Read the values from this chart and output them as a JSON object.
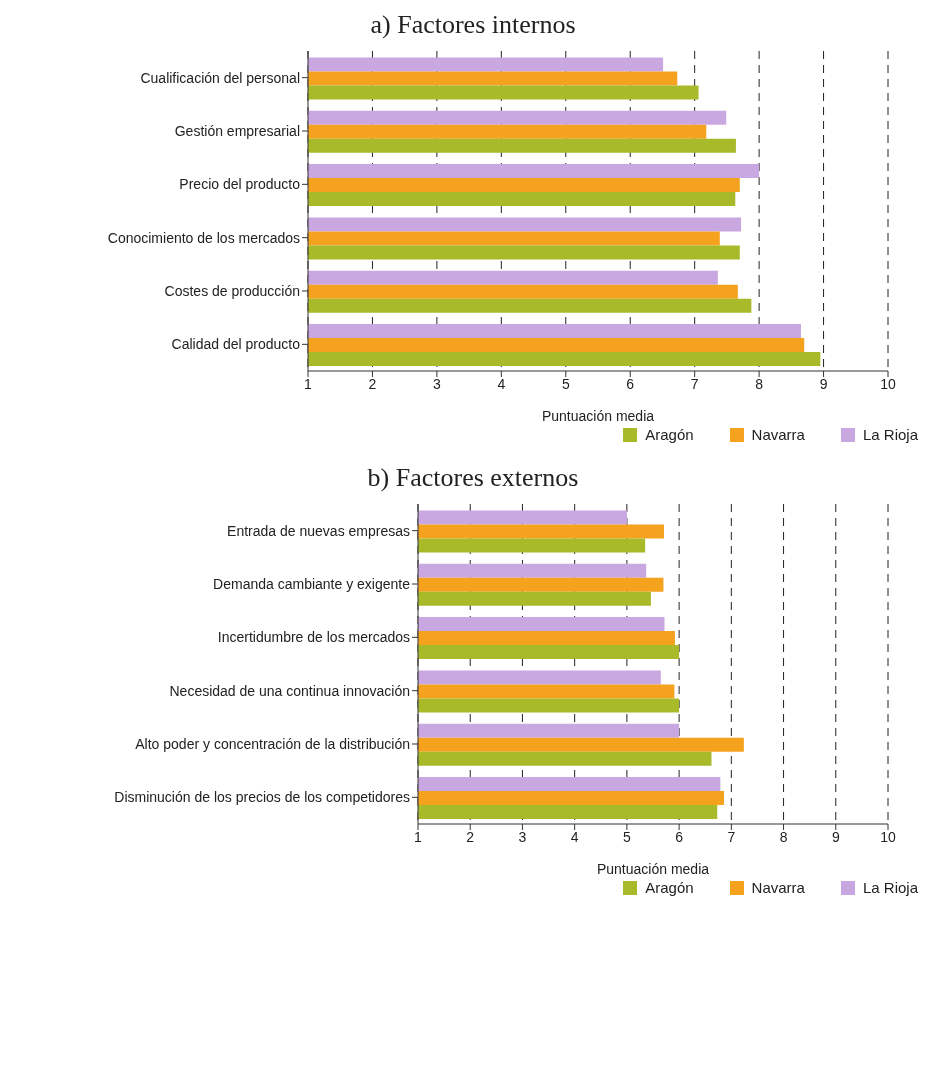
{
  "chart_data": [
    {
      "type": "bar",
      "orientation": "horizontal",
      "title": "a) Factores internos",
      "xlabel": "Puntuación media",
      "categories": [
        "Cualificación del personal",
        "Gestión empresarial",
        "Precio del producto",
        "Conocimiento de los mercados",
        "Costes de producción",
        "Calidad del producto"
      ],
      "series": [
        {
          "name": "Aragón",
          "color": "#a8b92a",
          "values": [
            7.06,
            7.64,
            7.63,
            7.7,
            7.88,
            8.95
          ]
        },
        {
          "name": "Navarra",
          "color": "#f5a21f",
          "values": [
            6.73,
            7.18,
            7.7,
            7.39,
            7.67,
            8.7
          ]
        },
        {
          "name": "La Rioja",
          "color": "#c9a8e2",
          "values": [
            6.51,
            7.49,
            8.0,
            7.72,
            7.36,
            8.65
          ]
        }
      ],
      "xlim": [
        1,
        10
      ],
      "xticks": [
        1,
        2,
        3,
        4,
        5,
        6,
        7,
        8,
        9,
        10
      ],
      "grid": "x",
      "legend": "bottom right"
    },
    {
      "type": "bar",
      "orientation": "horizontal",
      "title": "b) Factores externos",
      "xlabel": "Puntuación media",
      "categories": [
        "Entrada de nuevas empresas",
        "Demanda cambiante y exigente",
        "Incertidumbre de los mercados",
        "Necesidad de una continua innovación",
        "Alto poder y concentración de la distribución",
        "Disminución de los precios de los competidores"
      ],
      "series": [
        {
          "name": "Aragón",
          "color": "#a8b92a",
          "values": [
            5.35,
            5.46,
            6.0,
            6.0,
            6.62,
            6.73
          ]
        },
        {
          "name": "Navarra",
          "color": "#f5a21f",
          "values": [
            5.71,
            5.7,
            5.92,
            5.91,
            7.24,
            6.86
          ]
        },
        {
          "name": "La Rioja",
          "color": "#c9a8e2",
          "values": [
            5.0,
            5.37,
            5.72,
            5.65,
            6.0,
            6.79
          ]
        }
      ],
      "xlim": [
        1,
        10
      ],
      "xticks": [
        1,
        2,
        3,
        4,
        5,
        6,
        7,
        8,
        9,
        10
      ],
      "grid": "x",
      "legend": "bottom right"
    }
  ]
}
